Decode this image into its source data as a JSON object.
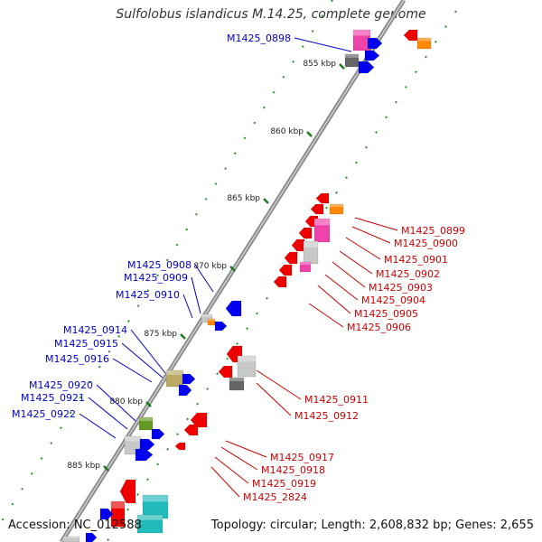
{
  "title": "Sulfolobus islandicus M.14.25, complete genome",
  "accession": "Accession: NC_012588",
  "stats": "Topology: circular; Length: 2,608,832 bp; Genes: 2,655",
  "colors": {
    "backbone": "#8c8c8c",
    "tick_major": "#1a7a1a",
    "tick_minor": "#2e8b2e",
    "label_plus": "#0000cc",
    "label_minus": "#cc0000",
    "gene_red": "#ee0000",
    "gene_blue": "#0000ee",
    "gene_pink": "#ee44aa",
    "gene_gray_dark": "#666666",
    "gene_gray_light": "#c8c8c8",
    "gene_orange": "#ff8800",
    "gene_olive": "#bbaa66",
    "gene_green": "#669922",
    "gene_cyan": "#22bbbb"
  },
  "ticks": [
    "855 kbp",
    "860 kbp",
    "865 kbp",
    "870 kbp",
    "875 kbp",
    "880 kbp",
    "885 kbp"
  ],
  "labels_left": [
    "M1425_0898",
    "M1425_0908",
    "M1425_0909",
    "M1425_0910",
    "M1425_0914",
    "M1425_0915",
    "M1425_0916",
    "M1425_0920",
    "M1425_0921",
    "M1425_0922"
  ],
  "labels_right": [
    "M1425_0899",
    "M1425_0900",
    "M1425_0901",
    "M1425_0902",
    "M1425_0903",
    "M1425_0904",
    "M1425_0905",
    "M1425_0906",
    "M1425_0911",
    "M1425_0912",
    "M1425_0917",
    "M1425_0918",
    "M1425_0919",
    "M1425_2824"
  ]
}
